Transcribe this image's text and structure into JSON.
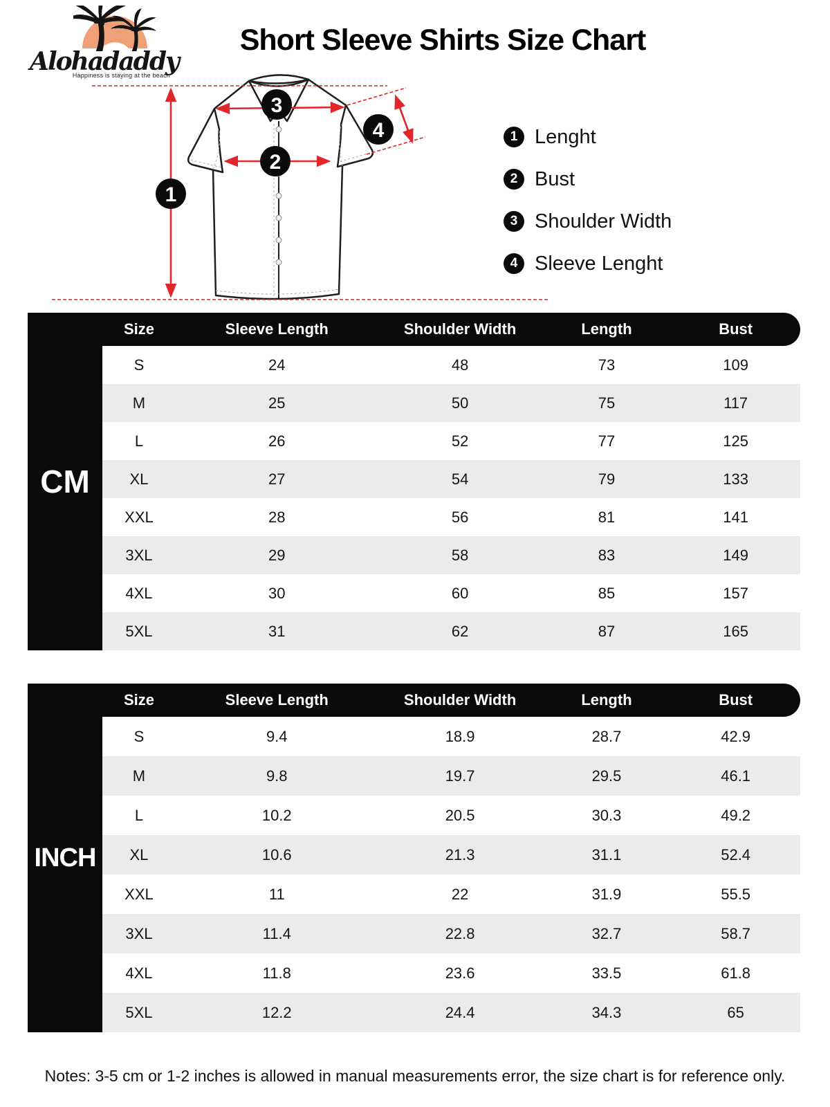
{
  "brand": {
    "name": "Alohadaddy",
    "tagline": "Happiness is staying at the beach"
  },
  "title": "Short Sleeve Shirts Size Chart",
  "diagram": {
    "badges": [
      "1",
      "2",
      "3",
      "4"
    ]
  },
  "legend": [
    {
      "num": "1",
      "label": "Lenght"
    },
    {
      "num": "2",
      "label": "Bust"
    },
    {
      "num": "3",
      "label": "Shoulder Width"
    },
    {
      "num": "4",
      "label": "Sleeve Lenght"
    }
  ],
  "tables": [
    {
      "unit_label": "CM",
      "columns": [
        "Size",
        "Sleeve Length",
        "Shoulder Width",
        "Length",
        "Bust"
      ],
      "rows": [
        [
          "S",
          "24",
          "48",
          "73",
          "109"
        ],
        [
          "M",
          "25",
          "50",
          "75",
          "117"
        ],
        [
          "L",
          "26",
          "52",
          "77",
          "125"
        ],
        [
          "XL",
          "27",
          "54",
          "79",
          "133"
        ],
        [
          "XXL",
          "28",
          "56",
          "81",
          "141"
        ],
        [
          "3XL",
          "29",
          "58",
          "83",
          "149"
        ],
        [
          "4XL",
          "30",
          "60",
          "85",
          "157"
        ],
        [
          "5XL",
          "31",
          "62",
          "87",
          "165"
        ]
      ]
    },
    {
      "unit_label": "INCH",
      "columns": [
        "Size",
        "Sleeve Length",
        "Shoulder Width",
        "Length",
        "Bust"
      ],
      "rows": [
        [
          "S",
          "9.4",
          "18.9",
          "28.7",
          "42.9"
        ],
        [
          "M",
          "9.8",
          "19.7",
          "29.5",
          "46.1"
        ],
        [
          "L",
          "10.2",
          "20.5",
          "30.3",
          "49.2"
        ],
        [
          "XL",
          "10.6",
          "21.3",
          "31.1",
          "52.4"
        ],
        [
          "XXL",
          "11",
          "22",
          "31.9",
          "55.5"
        ],
        [
          "3XL",
          "11.4",
          "22.8",
          "32.7",
          "58.7"
        ],
        [
          "4XL",
          "11.8",
          "23.6",
          "33.5",
          "61.8"
        ],
        [
          "5XL",
          "12.2",
          "24.4",
          "34.3",
          "65"
        ]
      ]
    }
  ],
  "notes": "Notes: 3-5 cm or 1-2 inches is allowed in manual measurements error, the size chart is for reference only.",
  "colors": {
    "black": "#0a0a0a",
    "row_alt_gray": "#ebebeb",
    "measure_red": "#e2242b",
    "logo_orange": "#f0a077"
  }
}
